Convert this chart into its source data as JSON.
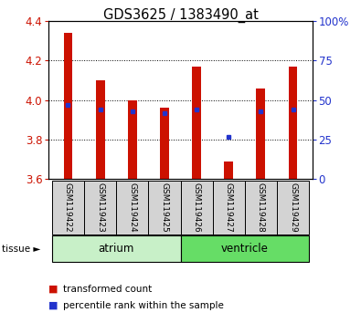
{
  "title": "GDS3625 / 1383490_at",
  "samples": [
    "GSM119422",
    "GSM119423",
    "GSM119424",
    "GSM119425",
    "GSM119426",
    "GSM119427",
    "GSM119428",
    "GSM119429"
  ],
  "red_values": [
    4.34,
    4.1,
    4.0,
    3.96,
    4.17,
    3.69,
    4.06,
    4.17
  ],
  "blue_values": [
    47,
    44,
    43,
    42,
    44,
    27,
    43,
    44
  ],
  "ymin": 3.6,
  "ymax": 4.4,
  "y2min": 0,
  "y2max": 100,
  "yticks": [
    3.6,
    3.8,
    4.0,
    4.2,
    4.4
  ],
  "y2ticks": [
    0,
    25,
    50,
    75,
    100
  ],
  "y2ticklabels": [
    "0",
    "25",
    "50",
    "75",
    "100%"
  ],
  "groups": [
    {
      "label": "atrium",
      "start": 0,
      "end": 4,
      "color": "#c8f0c8"
    },
    {
      "label": "ventricle",
      "start": 4,
      "end": 8,
      "color": "#66dd66"
    }
  ],
  "bar_color": "#cc1100",
  "blue_color": "#2233cc",
  "bar_width": 0.28,
  "axis_label_color_left": "#cc1100",
  "axis_label_color_right": "#2233cc",
  "sample_box_color": "#d3d3d3",
  "legend_square_size": 7,
  "tissue_arrow": "tissue ►"
}
